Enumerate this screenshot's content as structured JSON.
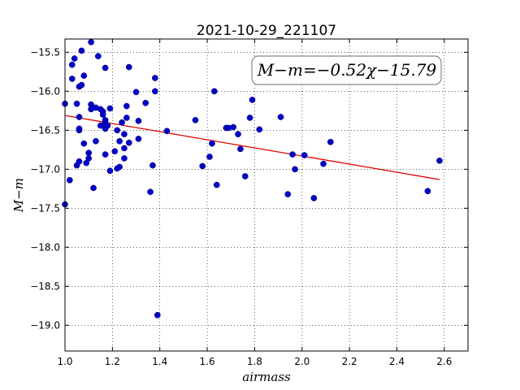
{
  "chart_data": {
    "type": "scatter",
    "title": "2021-10-29_221107",
    "xlabel": "airmass",
    "ylabel": "M−m",
    "xlim": [
      1.0,
      2.7
    ],
    "ylim": [
      -19.33,
      -15.33
    ],
    "y_inverted": true,
    "grid": true,
    "xticks": [
      1.0,
      1.2,
      1.4,
      1.6,
      1.8,
      2.0,
      2.2,
      2.4,
      2.6
    ],
    "xtick_labels": [
      "1.0",
      "1.2",
      "1.4",
      "1.6",
      "1.8",
      "2.0",
      "2.2",
      "2.4",
      "2.6"
    ],
    "yticks": [
      -15.5,
      -16.0,
      -16.5,
      -17.0,
      -17.5,
      -18.0,
      -18.5,
      -19.0
    ],
    "ytick_labels": [
      "−15.5",
      "−16.0",
      "−16.5",
      "−17.0",
      "−17.5",
      "−18.0",
      "−18.5",
      "−19.0"
    ],
    "annotation": "M−m=−0.52χ−15.79",
    "annotation_position": "top-right",
    "fit": {
      "slope": -0.52,
      "intercept": -15.79,
      "x_range": [
        1.0,
        2.58
      ],
      "color": "#e00000"
    },
    "point_color": "#0000c8",
    "points": [
      {
        "x": 1.0,
        "y": -16.16
      },
      {
        "x": 1.0,
        "y": -17.45
      },
      {
        "x": 1.02,
        "y": -17.14
      },
      {
        "x": 1.03,
        "y": -15.66
      },
      {
        "x": 1.03,
        "y": -15.84
      },
      {
        "x": 1.04,
        "y": -15.58
      },
      {
        "x": 1.05,
        "y": -16.16
      },
      {
        "x": 1.05,
        "y": -16.95
      },
      {
        "x": 1.06,
        "y": -16.5
      },
      {
        "x": 1.06,
        "y": -16.9
      },
      {
        "x": 1.06,
        "y": -16.33
      },
      {
        "x": 1.06,
        "y": -16.48
      },
      {
        "x": 1.06,
        "y": -15.94
      },
      {
        "x": 1.07,
        "y": -15.48
      },
      {
        "x": 1.07,
        "y": -15.92
      },
      {
        "x": 1.08,
        "y": -15.8
      },
      {
        "x": 1.08,
        "y": -16.67
      },
      {
        "x": 1.09,
        "y": -16.92
      },
      {
        "x": 1.1,
        "y": -16.86
      },
      {
        "x": 1.1,
        "y": -16.79
      },
      {
        "x": 1.11,
        "y": -15.37
      },
      {
        "x": 1.11,
        "y": -16.17
      },
      {
        "x": 1.11,
        "y": -16.23
      },
      {
        "x": 1.12,
        "y": -17.24
      },
      {
        "x": 1.13,
        "y": -16.21
      },
      {
        "x": 1.13,
        "y": -16.64
      },
      {
        "x": 1.14,
        "y": -15.55
      },
      {
        "x": 1.15,
        "y": -16.44
      },
      {
        "x": 1.15,
        "y": -16.23
      },
      {
        "x": 1.16,
        "y": -16.26
      },
      {
        "x": 1.16,
        "y": -16.3
      },
      {
        "x": 1.17,
        "y": -16.37
      },
      {
        "x": 1.17,
        "y": -16.81
      },
      {
        "x": 1.17,
        "y": -16.48
      },
      {
        "x": 1.17,
        "y": -16.41
      },
      {
        "x": 1.17,
        "y": -15.7
      },
      {
        "x": 1.18,
        "y": -16.44
      },
      {
        "x": 1.19,
        "y": -17.02
      },
      {
        "x": 1.19,
        "y": -16.22
      },
      {
        "x": 1.21,
        "y": -16.77
      },
      {
        "x": 1.22,
        "y": -16.5
      },
      {
        "x": 1.22,
        "y": -16.99
      },
      {
        "x": 1.23,
        "y": -16.64
      },
      {
        "x": 1.23,
        "y": -16.97
      },
      {
        "x": 1.24,
        "y": -16.4
      },
      {
        "x": 1.25,
        "y": -16.55
      },
      {
        "x": 1.25,
        "y": -16.73
      },
      {
        "x": 1.25,
        "y": -16.86
      },
      {
        "x": 1.26,
        "y": -16.19
      },
      {
        "x": 1.26,
        "y": -16.34
      },
      {
        "x": 1.27,
        "y": -15.69
      },
      {
        "x": 1.27,
        "y": -16.66
      },
      {
        "x": 1.3,
        "y": -16.01
      },
      {
        "x": 1.31,
        "y": -16.38
      },
      {
        "x": 1.31,
        "y": -16.61
      },
      {
        "x": 1.34,
        "y": -16.15
      },
      {
        "x": 1.36,
        "y": -17.29
      },
      {
        "x": 1.37,
        "y": -16.95
      },
      {
        "x": 1.38,
        "y": -16.0
      },
      {
        "x": 1.38,
        "y": -15.83
      },
      {
        "x": 1.39,
        "y": -18.87
      },
      {
        "x": 1.43,
        "y": -16.51
      },
      {
        "x": 1.55,
        "y": -16.37
      },
      {
        "x": 1.58,
        "y": -16.96
      },
      {
        "x": 1.61,
        "y": -16.84
      },
      {
        "x": 1.62,
        "y": -16.67
      },
      {
        "x": 1.63,
        "y": -16.0
      },
      {
        "x": 1.64,
        "y": -17.2
      },
      {
        "x": 1.68,
        "y": -16.47
      },
      {
        "x": 1.69,
        "y": -16.47
      },
      {
        "x": 1.71,
        "y": -16.46
      },
      {
        "x": 1.73,
        "y": -16.55
      },
      {
        "x": 1.74,
        "y": -16.74
      },
      {
        "x": 1.76,
        "y": -17.09
      },
      {
        "x": 1.78,
        "y": -16.34
      },
      {
        "x": 1.79,
        "y": -16.11
      },
      {
        "x": 1.82,
        "y": -16.49
      },
      {
        "x": 1.91,
        "y": -16.33
      },
      {
        "x": 1.94,
        "y": -17.32
      },
      {
        "x": 1.96,
        "y": -16.81
      },
      {
        "x": 1.97,
        "y": -17.0
      },
      {
        "x": 2.01,
        "y": -16.82
      },
      {
        "x": 2.05,
        "y": -17.37
      },
      {
        "x": 2.09,
        "y": -16.93
      },
      {
        "x": 2.12,
        "y": -16.65
      },
      {
        "x": 2.53,
        "y": -17.28
      },
      {
        "x": 2.58,
        "y": -16.89
      }
    ]
  }
}
